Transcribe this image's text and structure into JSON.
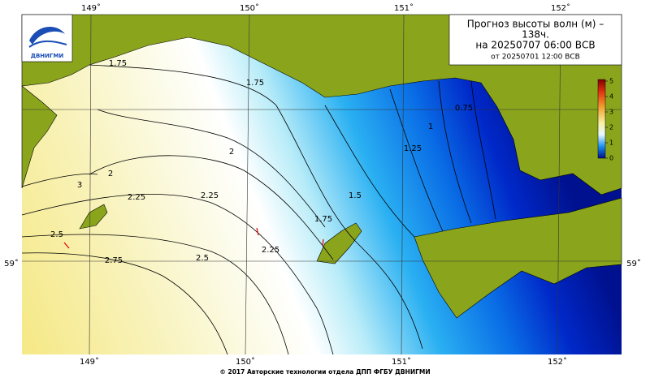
{
  "title": {
    "line1": "Прогноз высоты волн (м) –",
    "line2": "138ч.",
    "line3": "на 20250707 06:00 ВСВ",
    "line4": "от 20250701 12:00 ВСВ"
  },
  "logo": "ДВНИГМИ",
  "longitudes_top": [
    "149˚",
    "150˚",
    "151˚",
    "152˚"
  ],
  "longitudes_bottom": [
    "149˚",
    "150˚",
    "151˚",
    "152˚"
  ],
  "latitude_left": "59˚",
  "latitude_right": "59˚",
  "contour_labels": [
    "1.75",
    "1.75",
    "2",
    "2",
    "2.25",
    "2.25",
    "2.5",
    "2.5",
    "2.75",
    "1.5",
    "1.25",
    "1",
    "0.75",
    "1.75",
    "3",
    "2.25"
  ],
  "colorbar": {
    "ticks": [
      0,
      1,
      2,
      3,
      4,
      5
    ]
  },
  "footer": "© 2017 Авторские технологии отдела ДПП ФГБУ ДВНИГМИ"
}
